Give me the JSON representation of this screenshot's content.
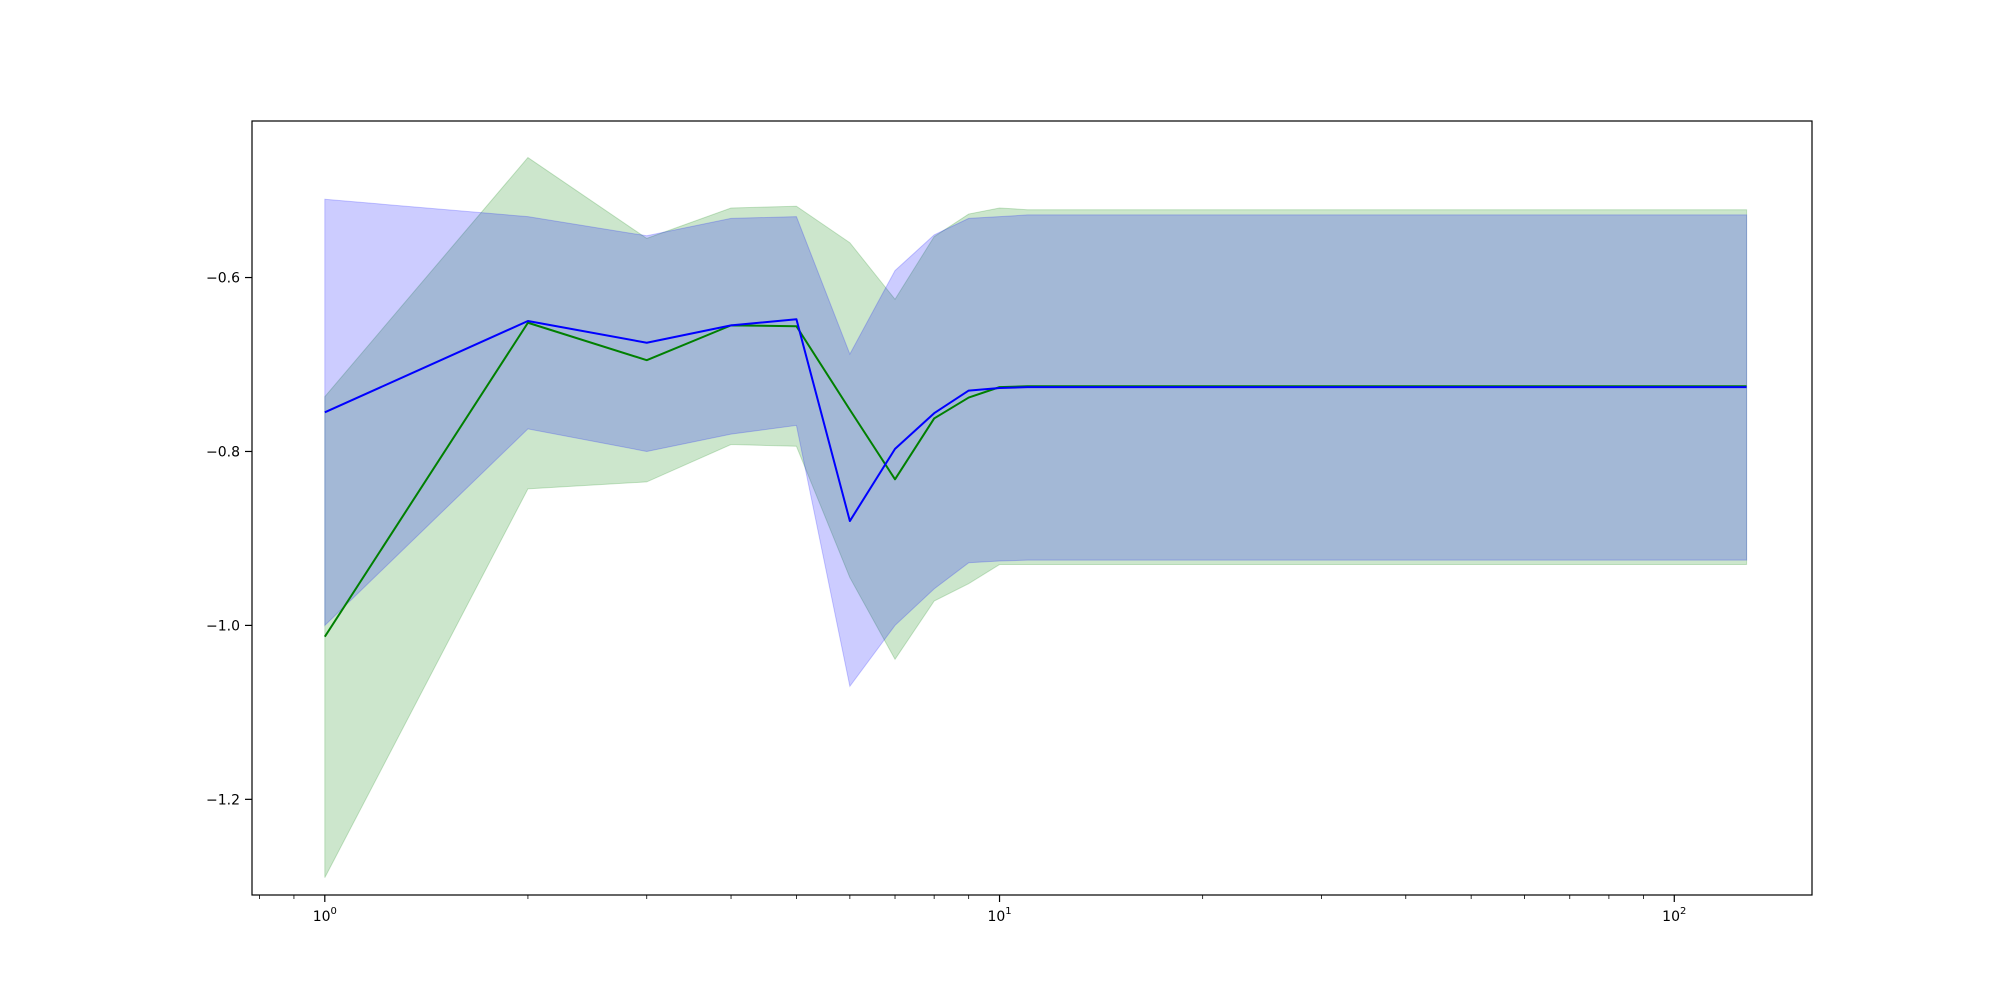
{
  "chart_data": {
    "type": "line",
    "title": "",
    "xlabel": "",
    "ylabel": "",
    "x_scale": "log",
    "xlim": [
      0.78,
      160
    ],
    "ylim": [
      -1.31,
      -0.42
    ],
    "grid": false,
    "legend": "none",
    "x_ticks": [
      {
        "value": 1,
        "base": "10",
        "exp": "0"
      },
      {
        "value": 10,
        "base": "10",
        "exp": "1"
      },
      {
        "value": 100,
        "base": "10",
        "exp": "2"
      }
    ],
    "y_ticks": [
      {
        "value": -0.6,
        "label": "−0.6"
      },
      {
        "value": -0.8,
        "label": "−0.8"
      },
      {
        "value": -1.0,
        "label": "−1.0"
      },
      {
        "value": -1.2,
        "label": "−1.2"
      }
    ],
    "series": [
      {
        "color": "#008000",
        "band_color": "#008000",
        "x": [
          1,
          2,
          3,
          4,
          5,
          6,
          7,
          8,
          9,
          10,
          11,
          128
        ],
        "mean": [
          -1.013,
          -0.652,
          -0.695,
          -0.655,
          -0.656,
          -0.752,
          -0.832,
          -0.762,
          -0.738,
          -0.726,
          -0.725,
          -0.725
        ],
        "upper": [
          -0.737,
          -0.462,
          -0.555,
          -0.52,
          -0.518,
          -0.56,
          -0.625,
          -0.553,
          -0.527,
          -0.52,
          -0.522,
          -0.522
        ],
        "lower": [
          -1.29,
          -0.843,
          -0.835,
          -0.792,
          -0.794,
          -0.945,
          -1.039,
          -0.972,
          -0.952,
          -0.93,
          -0.93,
          -0.93
        ]
      },
      {
        "color": "#0000ff",
        "band_color": "#0000ff",
        "x": [
          1,
          2,
          3,
          4,
          5,
          6,
          7,
          8,
          9,
          10,
          11,
          128
        ],
        "mean": [
          -0.755,
          -0.65,
          -0.675,
          -0.655,
          -0.648,
          -0.88,
          -0.797,
          -0.756,
          -0.73,
          -0.727,
          -0.726,
          -0.726
        ],
        "upper": [
          -0.51,
          -0.53,
          -0.552,
          -0.532,
          -0.53,
          -0.688,
          -0.592,
          -0.551,
          -0.532,
          -0.53,
          -0.528,
          -0.528
        ],
        "lower": [
          -1.0,
          -0.774,
          -0.8,
          -0.78,
          -0.77,
          -1.07,
          -1.0,
          -0.958,
          -0.928,
          -0.926,
          -0.925,
          -0.925
        ]
      }
    ]
  }
}
